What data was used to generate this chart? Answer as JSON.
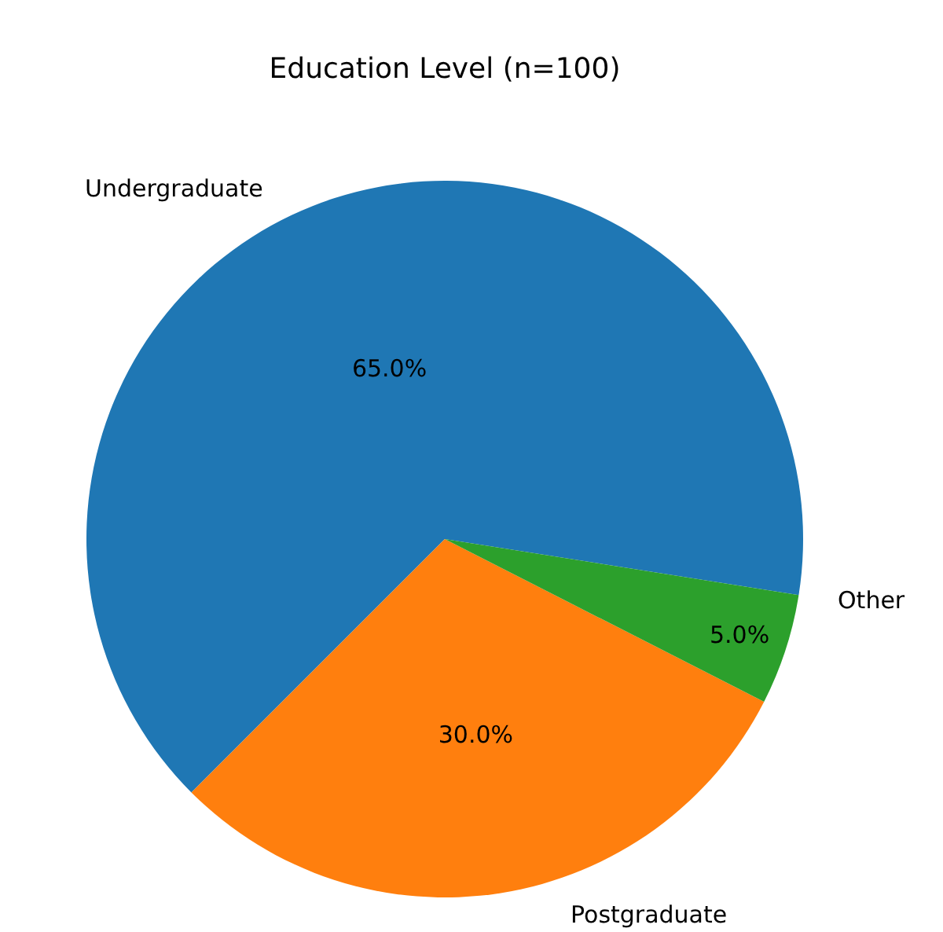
{
  "chart_data": {
    "type": "pie",
    "title": "Education Level (n=100)",
    "categories": [
      "Undergraduate",
      "Postgraduate",
      "Other"
    ],
    "values": [
      65,
      30,
      5
    ],
    "colors": [
      "#1f77b4",
      "#ff7f0e",
      "#2ca02c"
    ],
    "value_labels": [
      "65.0%",
      "30.0%",
      "5.0%"
    ],
    "legend": false
  }
}
